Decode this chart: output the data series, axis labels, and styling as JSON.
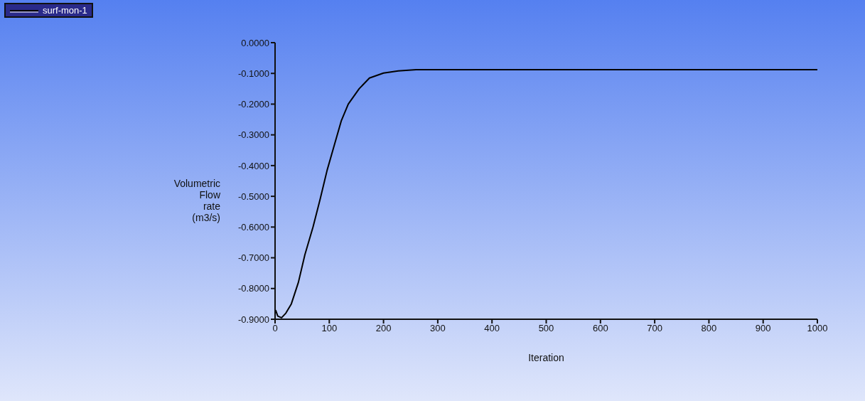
{
  "chart_data": {
    "type": "line",
    "xlabel": "Iteration",
    "ylabel": "Volumetric Flow rate (m3/s)",
    "legend": "top left",
    "grid": false,
    "marker": "none",
    "line_style": "solid",
    "xlim": [
      0,
      1000
    ],
    "xticks": [
      0,
      100,
      200,
      300,
      400,
      500,
      600,
      700,
      800,
      900,
      1000
    ],
    "ylim": [
      -0.9,
      0
    ],
    "yticks": [
      {
        "value": 0,
        "label": "0.0000"
      },
      {
        "value": -0.1,
        "label": "-0.1000"
      },
      {
        "value": -0.2,
        "label": "-0.2000"
      },
      {
        "value": -0.3,
        "label": "-0.3000"
      },
      {
        "value": -0.4,
        "label": "-0.4000"
      },
      {
        "value": -0.5,
        "label": "-0.5000"
      },
      {
        "value": -0.6,
        "label": "-0.6000"
      },
      {
        "value": -0.7,
        "label": "-0.7000"
      },
      {
        "value": -0.8,
        "label": "-0.8000"
      },
      {
        "value": -0.9,
        "label": "-0.9000"
      }
    ],
    "series": [
      {
        "name": "surf-mon-1",
        "color": "#000000",
        "x": [
          1,
          5,
          12,
          20,
          30,
          43,
          55,
          70,
          83,
          96,
          109,
          122,
          135,
          155,
          174,
          200,
          227,
          260,
          300,
          400,
          500,
          600,
          700,
          800,
          900,
          1000
        ],
        "values": [
          -0.87,
          -0.89,
          -0.895,
          -0.88,
          -0.85,
          -0.78,
          -0.69,
          -0.6,
          -0.51,
          -0.415,
          -0.335,
          -0.255,
          -0.2,
          -0.15,
          -0.115,
          -0.099,
          -0.092,
          -0.088,
          -0.088,
          -0.088,
          -0.088,
          -0.088,
          -0.088,
          -0.088,
          -0.088,
          -0.088
        ]
      }
    ]
  }
}
